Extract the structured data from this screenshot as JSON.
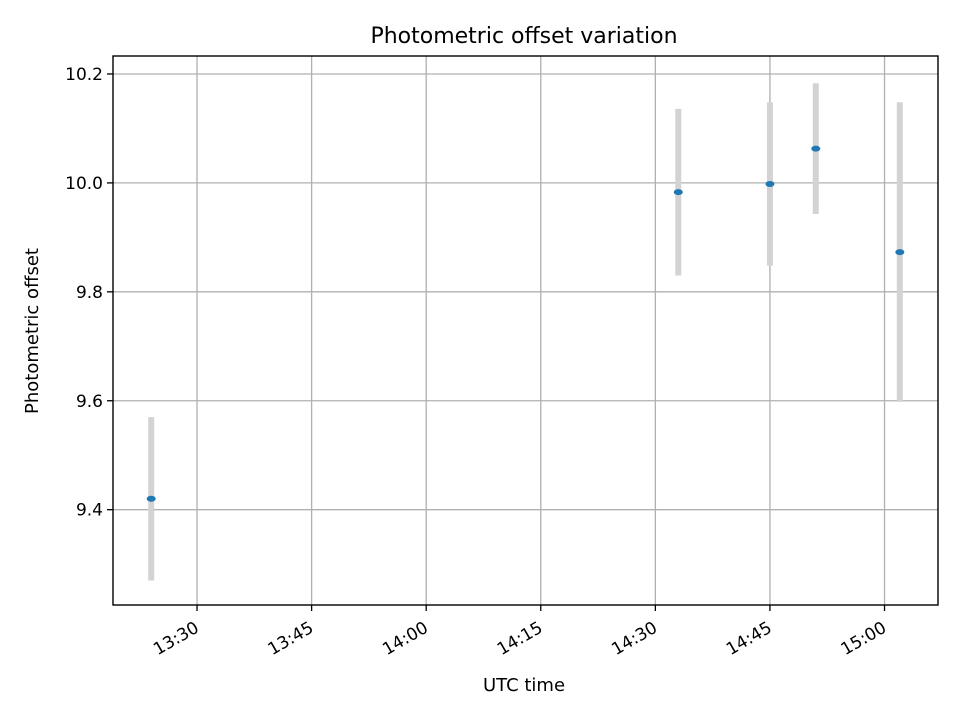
{
  "chart_data": {
    "type": "scatter",
    "title": "Photometric offset variation",
    "xlabel": "UTC time",
    "ylabel": "Photometric offset",
    "x_type": "time",
    "xlim": [
      "13:19",
      "15:07"
    ],
    "ylim": [
      9.225,
      10.233
    ],
    "x_ticks": [
      "13:30",
      "13:45",
      "14:00",
      "14:15",
      "14:30",
      "14:45",
      "15:00"
    ],
    "y_ticks": [
      9.4,
      9.6,
      9.8,
      10.0,
      10.2
    ],
    "y_tick_labels": [
      "9.4",
      "9.6",
      "9.8",
      "10.0",
      "10.2"
    ],
    "grid": true,
    "series": [
      {
        "color": "#1f77b4",
        "error_bar_color": "#d3d3d3",
        "points": [
          {
            "x": "13:24",
            "y": 9.42,
            "err": 0.15
          },
          {
            "x": "14:33",
            "y": 9.983,
            "err": 0.153
          },
          {
            "x": "14:45",
            "y": 9.998,
            "err": 0.15
          },
          {
            "x": "14:51",
            "y": 10.063,
            "err": 0.12
          },
          {
            "x": "15:02",
            "y": 9.873,
            "err": 0.275
          }
        ]
      }
    ]
  }
}
